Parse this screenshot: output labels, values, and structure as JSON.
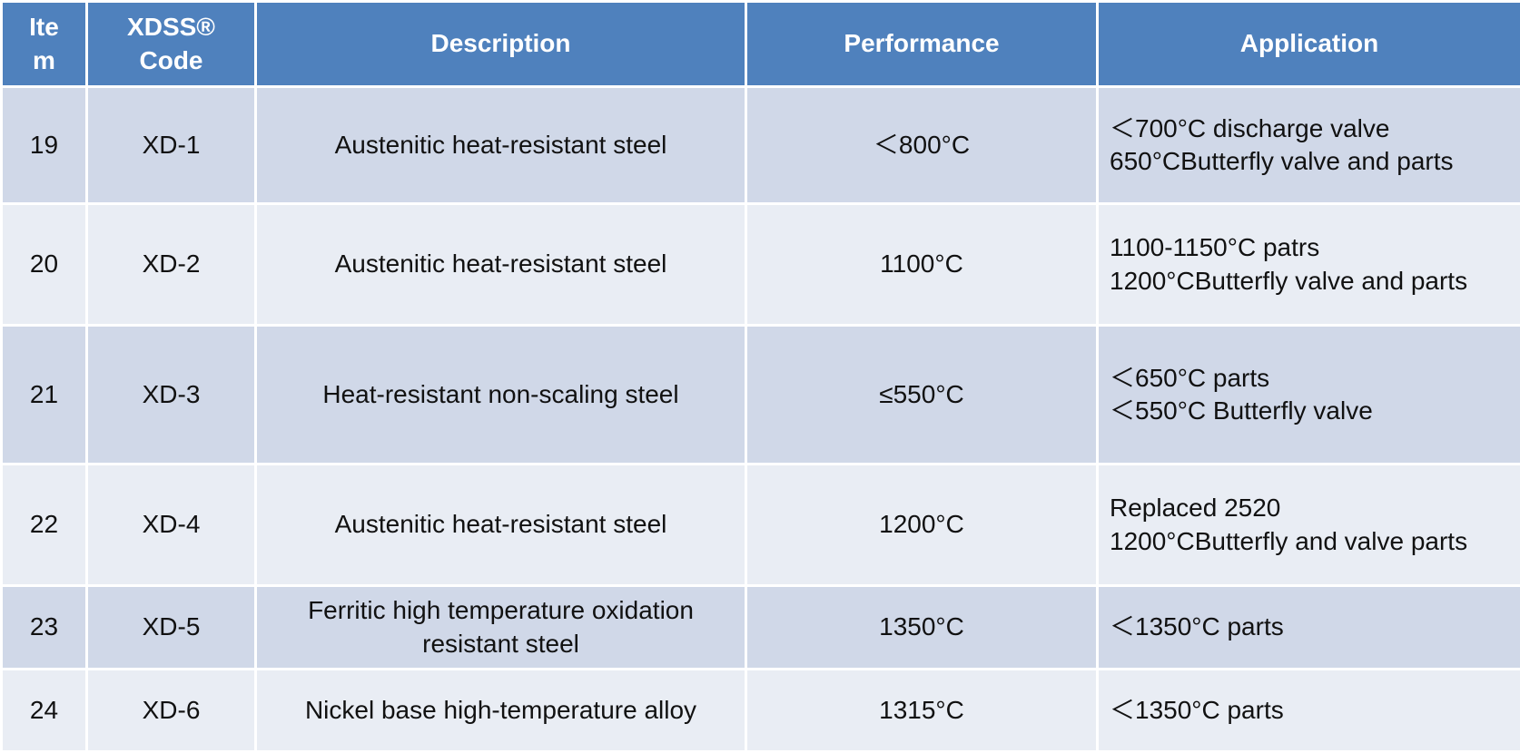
{
  "table": {
    "header": [
      "Item",
      "XDSS® Code",
      "Description",
      "Performance",
      "Application"
    ],
    "rows": [
      [
        "19",
        "XD-1",
        "Austenitic heat-resistant steel",
        "＜800°C",
        [
          "＜700°C discharge valve",
          "650°CButterfly valve and parts"
        ]
      ],
      [
        "20",
        "XD-2",
        "Austenitic heat-resistant steel",
        "1100°C",
        [
          "1100-1150°C patrs",
          "1200°CButterfly valve and parts"
        ]
      ],
      [
        "21",
        "XD-3",
        "Heat-resistant non-scaling steel",
        "≤550°C",
        [
          "＜650°C parts",
          "＜550°C Butterfly valve"
        ]
      ],
      [
        "22",
        "XD-4",
        "Austenitic heat-resistant steel",
        "1200°C",
        [
          "Replaced 2520",
          "1200°CButterfly and valve parts"
        ]
      ],
      [
        "23",
        "XD-5",
        "Ferritic high temperature oxidation resistant steel",
        "1350°C",
        [
          "＜1350°C parts"
        ]
      ],
      [
        "24",
        "XD-6",
        "Nickel base high-temperature alloy",
        "1315°C",
        [
          "＜1350°C parts"
        ]
      ]
    ]
  }
}
